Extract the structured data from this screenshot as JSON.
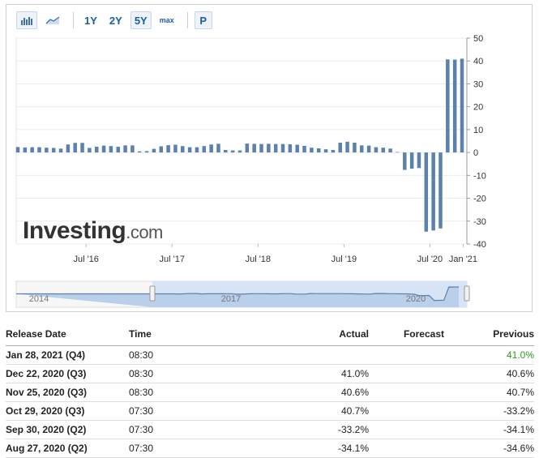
{
  "toolbar": {
    "bar_icon": "bar-chart-icon",
    "area_icon": "area-chart-icon",
    "ranges": [
      "1Y",
      "2Y",
      "5Y",
      "max"
    ],
    "active_range": "5Y",
    "p_label": "P"
  },
  "watermark": {
    "brand": "Investing",
    "suffix": ".com"
  },
  "chart_data": {
    "type": "bar",
    "y_ticks": [
      50,
      40,
      30,
      20,
      10,
      0,
      -10,
      -20,
      -30,
      -40
    ],
    "ylim": [
      -40,
      50
    ],
    "x_ticks": [
      "Jul '16",
      "Jul '17",
      "Jul '18",
      "Jul '19",
      "Jul '20",
      "Jan '21"
    ],
    "grid": true,
    "color": "#5b81ad",
    "values": [
      2.4,
      2.2,
      2.3,
      2.3,
      2.1,
      2.0,
      1.7,
      3.5,
      4.2,
      4.2,
      2.0,
      2.5,
      3.0,
      2.8,
      2.5,
      3.1,
      3.1,
      0.5,
      0.6,
      1.6,
      2.7,
      3.2,
      3.4,
      2.8,
      2.3,
      2.3,
      2.8,
      3.5,
      3.8,
      1.1,
      0.9,
      0.9,
      3.9,
      3.8,
      3.7,
      3.8,
      3.7,
      3.7,
      3.6,
      3.4,
      2.9,
      2.1,
      1.8,
      1.4,
      1.1,
      4.3,
      4.7,
      4.3,
      3.1,
      3.0,
      2.3,
      2.1,
      1.7,
      0.2,
      -7.6,
      -7.1,
      -6.8,
      -34.6,
      -34.1,
      -33.2,
      40.7,
      40.6,
      41.0
    ],
    "navigator": {
      "labels": [
        "2014",
        "2017",
        "2020"
      ]
    }
  },
  "table": {
    "headers": [
      "Release Date",
      "Time",
      "Actual",
      "Forecast",
      "Previous"
    ],
    "rows": [
      {
        "date": "Jan 28, 2021 (Q4)",
        "time": "08:30",
        "actual": "",
        "forecast": "",
        "previous": "41.0%"
      },
      {
        "date": "Dec 22, 2020 (Q3)",
        "time": "08:30",
        "actual": "41.0%",
        "forecast": "",
        "previous": "40.6%"
      },
      {
        "date": "Nov 25, 2020 (Q3)",
        "time": "08:30",
        "actual": "40.6%",
        "forecast": "",
        "previous": "40.7%"
      },
      {
        "date": "Oct 29, 2020 (Q3)",
        "time": "07:30",
        "actual": "40.7%",
        "forecast": "",
        "previous": "-33.2%"
      },
      {
        "date": "Sep 30, 2020 (Q2)",
        "time": "07:30",
        "actual": "-33.2%",
        "forecast": "",
        "previous": "-34.1%"
      },
      {
        "date": "Aug 27, 2020 (Q2)",
        "time": "07:30",
        "actual": "-34.1%",
        "forecast": "",
        "previous": "-34.6%"
      }
    ],
    "colors": {
      "positive_previous": "#2a9d1d"
    }
  }
}
